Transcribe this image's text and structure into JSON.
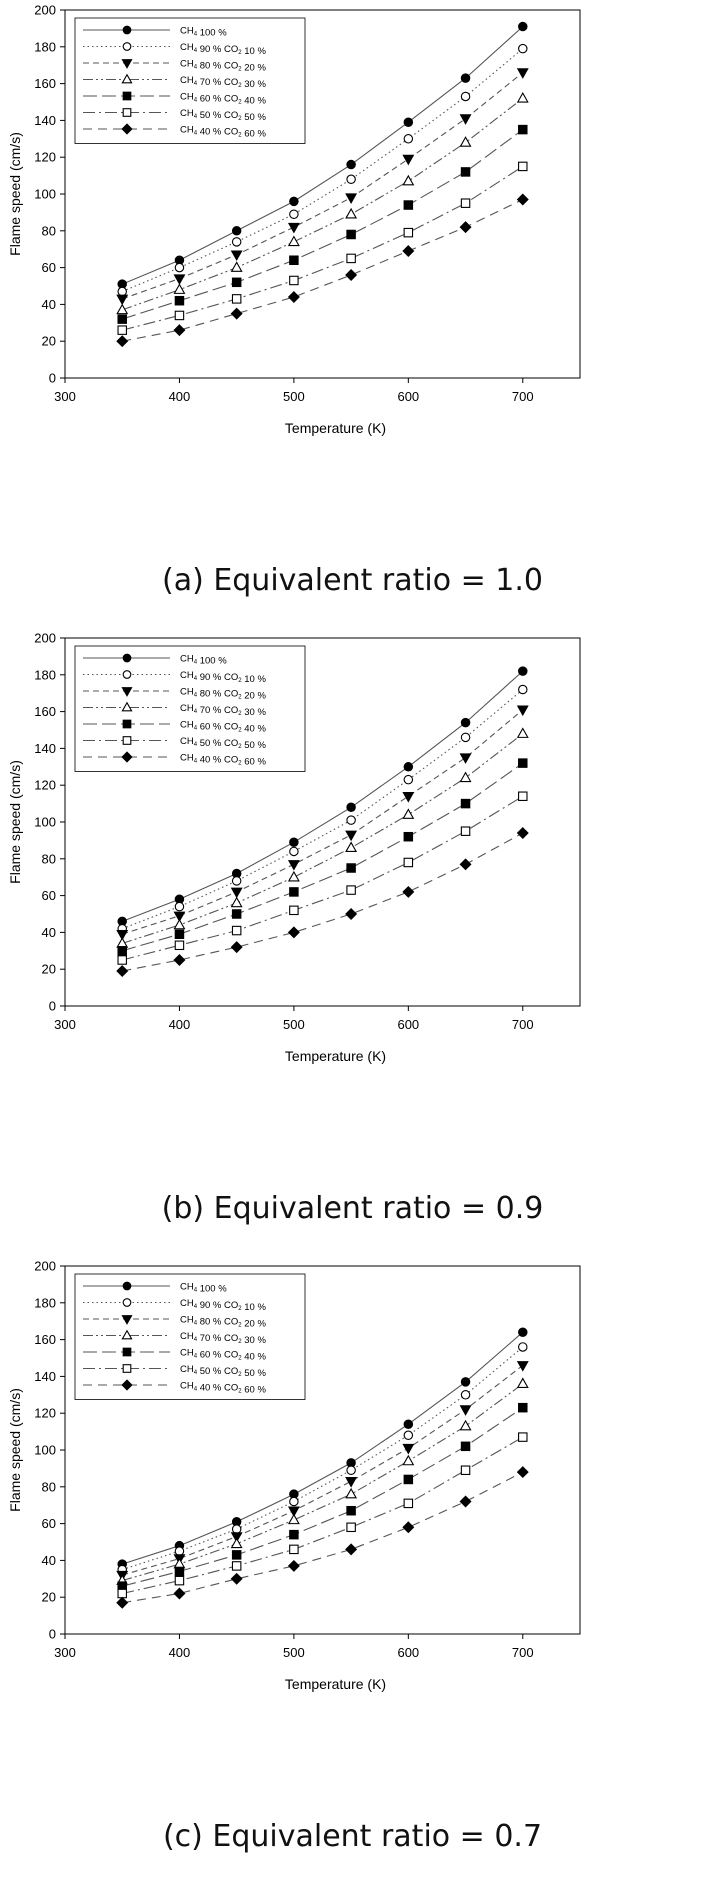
{
  "chart_data": [
    {
      "type": "line",
      "caption": "(a) Equivalent ratio = 1.0",
      "xlabel": "Temperature (K)",
      "ylabel": "Flame speed (cm/s)",
      "xlim": [
        300,
        750
      ],
      "ylim": [
        0,
        200
      ],
      "xticks": [
        300,
        400,
        500,
        600,
        700
      ],
      "yticks": [
        0,
        20,
        40,
        60,
        80,
        100,
        120,
        140,
        160,
        180,
        200
      ],
      "legend_position": "top-left",
      "x": [
        350,
        400,
        450,
        500,
        550,
        600,
        650,
        700
      ],
      "series": [
        {
          "name": "CH4 100 %",
          "marker": "circle-filled",
          "dash": "solid",
          "values": [
            51,
            64,
            80,
            96,
            116,
            139,
            163,
            191
          ]
        },
        {
          "name": "CH4 90 % CO2 10 %",
          "marker": "circle-open",
          "dash": "dotted",
          "values": [
            47,
            60,
            74,
            89,
            108,
            130,
            153,
            179
          ]
        },
        {
          "name": "CH4 80 % CO2 20 %",
          "marker": "triangle-down-filled",
          "dash": "dashed",
          "values": [
            43,
            54,
            67,
            82,
            98,
            119,
            141,
            166
          ]
        },
        {
          "name": "CH4 70 % CO2 30 %",
          "marker": "triangle-up-open",
          "dash": "dashdotdot",
          "values": [
            37,
            48,
            60,
            74,
            89,
            107,
            128,
            152
          ]
        },
        {
          "name": "CH4 60 % CO2 40 %",
          "marker": "square-filled",
          "dash": "longdash",
          "values": [
            32,
            42,
            52,
            64,
            78,
            94,
            112,
            135
          ]
        },
        {
          "name": "CH4 50 % CO2 50 %",
          "marker": "square-open",
          "dash": "dashdot",
          "values": [
            26,
            34,
            43,
            53,
            65,
            79,
            95,
            115
          ]
        },
        {
          "name": "CH4 40 % CO2 60 %",
          "marker": "diamond-filled",
          "dash": "mediumdash",
          "values": [
            20,
            26,
            35,
            44,
            56,
            69,
            82,
            97
          ]
        }
      ]
    },
    {
      "type": "line",
      "caption": "(b) Equivalent ratio = 0.9",
      "xlabel": "Temperature (K)",
      "ylabel": "Flame speed (cm/s)",
      "xlim": [
        300,
        750
      ],
      "ylim": [
        0,
        200
      ],
      "xticks": [
        300,
        400,
        500,
        600,
        700
      ],
      "yticks": [
        0,
        20,
        40,
        60,
        80,
        100,
        120,
        140,
        160,
        180,
        200
      ],
      "legend_position": "top-left",
      "x": [
        350,
        400,
        450,
        500,
        550,
        600,
        650,
        700
      ],
      "series": [
        {
          "name": "CH4 100 %",
          "marker": "circle-filled",
          "dash": "solid",
          "values": [
            46,
            58,
            72,
            89,
            108,
            130,
            154,
            182
          ]
        },
        {
          "name": "CH4 90 % CO2 10 %",
          "marker": "circle-open",
          "dash": "dotted",
          "values": [
            42,
            54,
            68,
            84,
            101,
            123,
            146,
            172
          ]
        },
        {
          "name": "CH4 80 % CO2 20 %",
          "marker": "triangle-down-filled",
          "dash": "dashed",
          "values": [
            39,
            49,
            62,
            77,
            93,
            114,
            135,
            161
          ]
        },
        {
          "name": "CH4 70 % CO2 30 %",
          "marker": "triangle-up-open",
          "dash": "dashdotdot",
          "values": [
            34,
            44,
            56,
            70,
            86,
            104,
            124,
            148
          ]
        },
        {
          "name": "CH4 60 % CO2 40 %",
          "marker": "square-filled",
          "dash": "longdash",
          "values": [
            30,
            39,
            50,
            62,
            75,
            92,
            110,
            132
          ]
        },
        {
          "name": "CH4 50 % CO2 50 %",
          "marker": "square-open",
          "dash": "dashdot",
          "values": [
            25,
            33,
            41,
            52,
            63,
            78,
            95,
            114
          ]
        },
        {
          "name": "CH4 40 % CO2 60 %",
          "marker": "diamond-filled",
          "dash": "mediumdash",
          "values": [
            19,
            25,
            32,
            40,
            50,
            62,
            77,
            94
          ]
        }
      ]
    },
    {
      "type": "line",
      "caption": "(c) Equivalent ratio = 0.7",
      "xlabel": "Temperature (K)",
      "ylabel": "Flame speed (cm/s)",
      "xlim": [
        300,
        750
      ],
      "ylim": [
        0,
        200
      ],
      "xticks": [
        300,
        400,
        500,
        600,
        700
      ],
      "yticks": [
        0,
        20,
        40,
        60,
        80,
        100,
        120,
        140,
        160,
        180,
        200
      ],
      "legend_position": "top-left",
      "x": [
        350,
        400,
        450,
        500,
        550,
        600,
        650,
        700
      ],
      "series": [
        {
          "name": "CH4 100 %",
          "marker": "circle-filled",
          "dash": "solid",
          "values": [
            38,
            48,
            61,
            76,
            93,
            114,
            137,
            164
          ]
        },
        {
          "name": "CH4 90 % CO2 10 %",
          "marker": "circle-open",
          "dash": "dotted",
          "values": [
            35,
            45,
            57,
            72,
            89,
            108,
            130,
            156
          ]
        },
        {
          "name": "CH4 80 % CO2 20 %",
          "marker": "triangle-down-filled",
          "dash": "dashed",
          "values": [
            32,
            41,
            53,
            67,
            83,
            101,
            122,
            146
          ]
        },
        {
          "name": "CH4 70 % CO2 30 %",
          "marker": "triangle-up-open",
          "dash": "dashdotdot",
          "values": [
            29,
            38,
            49,
            62,
            76,
            94,
            113,
            136
          ]
        },
        {
          "name": "CH4 60 % CO2 40 %",
          "marker": "square-filled",
          "dash": "longdash",
          "values": [
            26,
            34,
            43,
            54,
            67,
            84,
            102,
            123
          ]
        },
        {
          "name": "CH4 50 % CO2 50 %",
          "marker": "square-open",
          "dash": "dashdot",
          "values": [
            22,
            29,
            37,
            46,
            58,
            71,
            89,
            107
          ]
        },
        {
          "name": "CH4 40 % CO2 60 %",
          "marker": "diamond-filled",
          "dash": "mediumdash",
          "values": [
            17,
            22,
            30,
            37,
            46,
            58,
            72,
            88
          ]
        }
      ]
    }
  ]
}
